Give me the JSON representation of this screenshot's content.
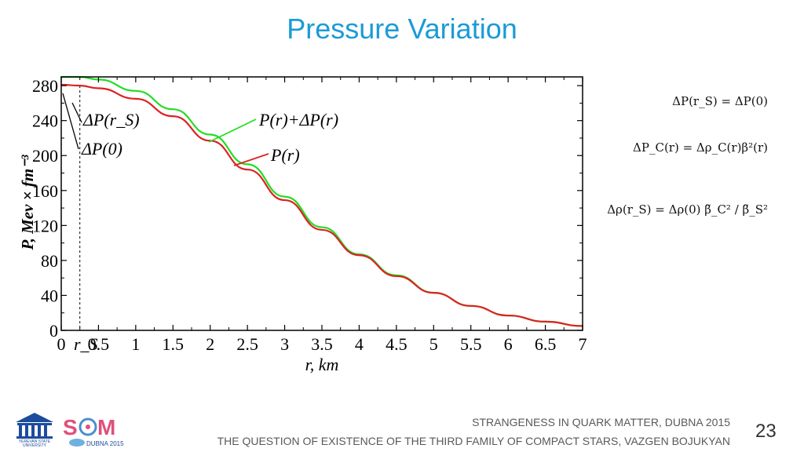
{
  "slide": {
    "title": "Pressure Variation",
    "page_number": "23",
    "footer": [
      "STRANGENESS IN QUARK MATTER,  DUBNA 2015",
      "THE QUESTION OF EXISTENCE OF THE THIRD FAMILY OF COMPACT STARS, VAZGEN BOJUKYAN"
    ],
    "logos": {
      "left": "YEREVAN STATE UNIVERSITY",
      "right": "SQM",
      "right_sub": "DUBNA 2015"
    }
  },
  "equations": {
    "eq1": "ΔP(r_S) = ΔP(0)",
    "eq2": "ΔP_C(r) = Δρ_C(r)β²(r)",
    "eq3": "Δρ(r_S) = Δρ(0) β̃_C² / β̃_S²"
  },
  "chart_data": {
    "type": "line",
    "xlabel": "r, km",
    "ylabel": "P, Mev × fm⁻³",
    "xlim": [
      0,
      7
    ],
    "ylim": [
      0,
      290
    ],
    "xticks": [
      "0",
      "0.5",
      "1",
      "1.5",
      "2",
      "2.5",
      "3",
      "3.5",
      "4",
      "4.5",
      "5",
      "5.5",
      "6",
      "6.5",
      "7"
    ],
    "yticks": [
      "0",
      "40",
      "80",
      "120",
      "160",
      "200",
      "240",
      "280"
    ],
    "rs_marker": {
      "label": "r_S",
      "x": 0.25
    },
    "annotations": [
      "ΔP(r_S)",
      "ΔP(0)",
      "P(r)+ΔP(r)",
      "P(r)"
    ],
    "series": [
      {
        "name": "P(r)+ΔP(r)",
        "color": "#22dd22",
        "x": [
          0,
          0.25,
          0.5,
          1,
          1.5,
          2,
          2.5,
          3,
          3.5,
          4,
          4.5,
          5,
          5.5,
          6,
          6.5,
          7
        ],
        "y": [
          290,
          290,
          287,
          274,
          253,
          224,
          190,
          153,
          118,
          87,
          63,
          43,
          28,
          17,
          10,
          5
        ]
      },
      {
        "name": "P(r)",
        "color": "#dd2222",
        "x": [
          0,
          0.25,
          0.5,
          1,
          1.5,
          2,
          2.5,
          3,
          3.5,
          4,
          4.5,
          5,
          5.5,
          6,
          6.5,
          7
        ],
        "y": [
          281,
          280,
          277,
          265,
          245,
          217,
          184,
          149,
          115,
          86,
          62,
          43,
          28,
          17,
          10,
          5
        ]
      }
    ]
  }
}
